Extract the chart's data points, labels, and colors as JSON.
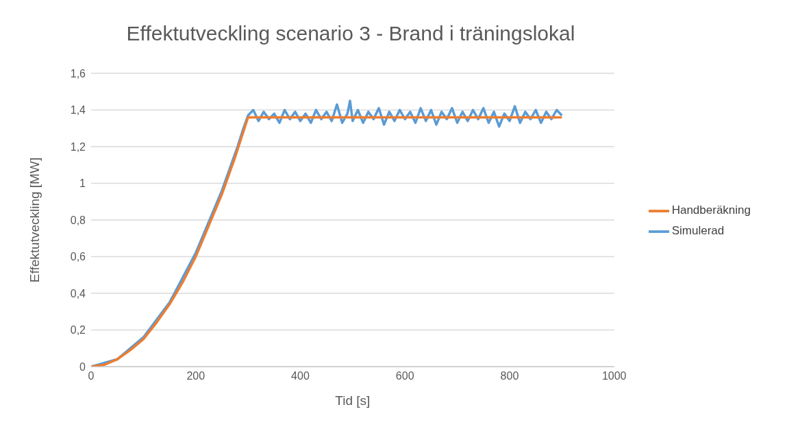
{
  "chart_data": {
    "type": "line",
    "title": "Effektutveckling scenario 3 - Brand i träningslokal",
    "xlabel": "Tid [s]",
    "ylabel": "Effektutveckling [MW]",
    "xlim": [
      0,
      1000
    ],
    "xticks": [
      0,
      200,
      400,
      600,
      800,
      1000
    ],
    "ylim": [
      0,
      1.6
    ],
    "yticks": [
      0,
      {
        "value": 0.2,
        "label": "0,2"
      },
      {
        "value": 0.4,
        "label": "0,4"
      },
      {
        "value": 0.6,
        "label": "0,6"
      },
      {
        "value": 0.8,
        "label": "0,8"
      },
      1,
      {
        "value": 1.2,
        "label": "1,2"
      },
      {
        "value": 1.4,
        "label": "1,4"
      },
      {
        "value": 1.6,
        "label": "1,6"
      }
    ],
    "grid": "y",
    "legend": "right",
    "marker": "none",
    "line_style": "solid",
    "series": [
      {
        "name": "Simulerad",
        "color": "#5b9bd5",
        "x": [
          0,
          50,
          100,
          150,
          200,
          250,
          280,
          290,
          300,
          310,
          320,
          330,
          340,
          350,
          360,
          370,
          380,
          390,
          400,
          410,
          420,
          430,
          440,
          450,
          460,
          470,
          480,
          490,
          495,
          500,
          510,
          520,
          530,
          540,
          550,
          560,
          570,
          580,
          590,
          600,
          610,
          620,
          630,
          640,
          650,
          660,
          670,
          680,
          690,
          700,
          710,
          720,
          730,
          740,
          750,
          760,
          770,
          780,
          790,
          800,
          810,
          820,
          830,
          840,
          850,
          860,
          870,
          880,
          890,
          900
        ],
        "values": [
          0,
          0.04,
          0.16,
          0.35,
          0.62,
          0.96,
          1.2,
          1.29,
          1.37,
          1.4,
          1.34,
          1.39,
          1.35,
          1.38,
          1.33,
          1.4,
          1.35,
          1.39,
          1.34,
          1.38,
          1.33,
          1.4,
          1.35,
          1.39,
          1.34,
          1.43,
          1.33,
          1.38,
          1.45,
          1.34,
          1.4,
          1.33,
          1.39,
          1.35,
          1.41,
          1.32,
          1.39,
          1.34,
          1.4,
          1.35,
          1.39,
          1.33,
          1.41,
          1.34,
          1.4,
          1.32,
          1.39,
          1.35,
          1.41,
          1.33,
          1.39,
          1.34,
          1.4,
          1.35,
          1.41,
          1.33,
          1.39,
          1.31,
          1.38,
          1.34,
          1.42,
          1.33,
          1.39,
          1.35,
          1.4,
          1.33,
          1.39,
          1.35,
          1.4,
          1.37
        ]
      },
      {
        "name": "Handberäkning",
        "color": "#ed7d31",
        "x": [
          0,
          25,
          50,
          75,
          100,
          125,
          150,
          175,
          200,
          225,
          250,
          275,
          300,
          900
        ],
        "values": [
          0,
          0.01,
          0.04,
          0.09,
          0.15,
          0.24,
          0.34,
          0.46,
          0.6,
          0.77,
          0.94,
          1.14,
          1.36,
          1.36
        ]
      }
    ]
  }
}
